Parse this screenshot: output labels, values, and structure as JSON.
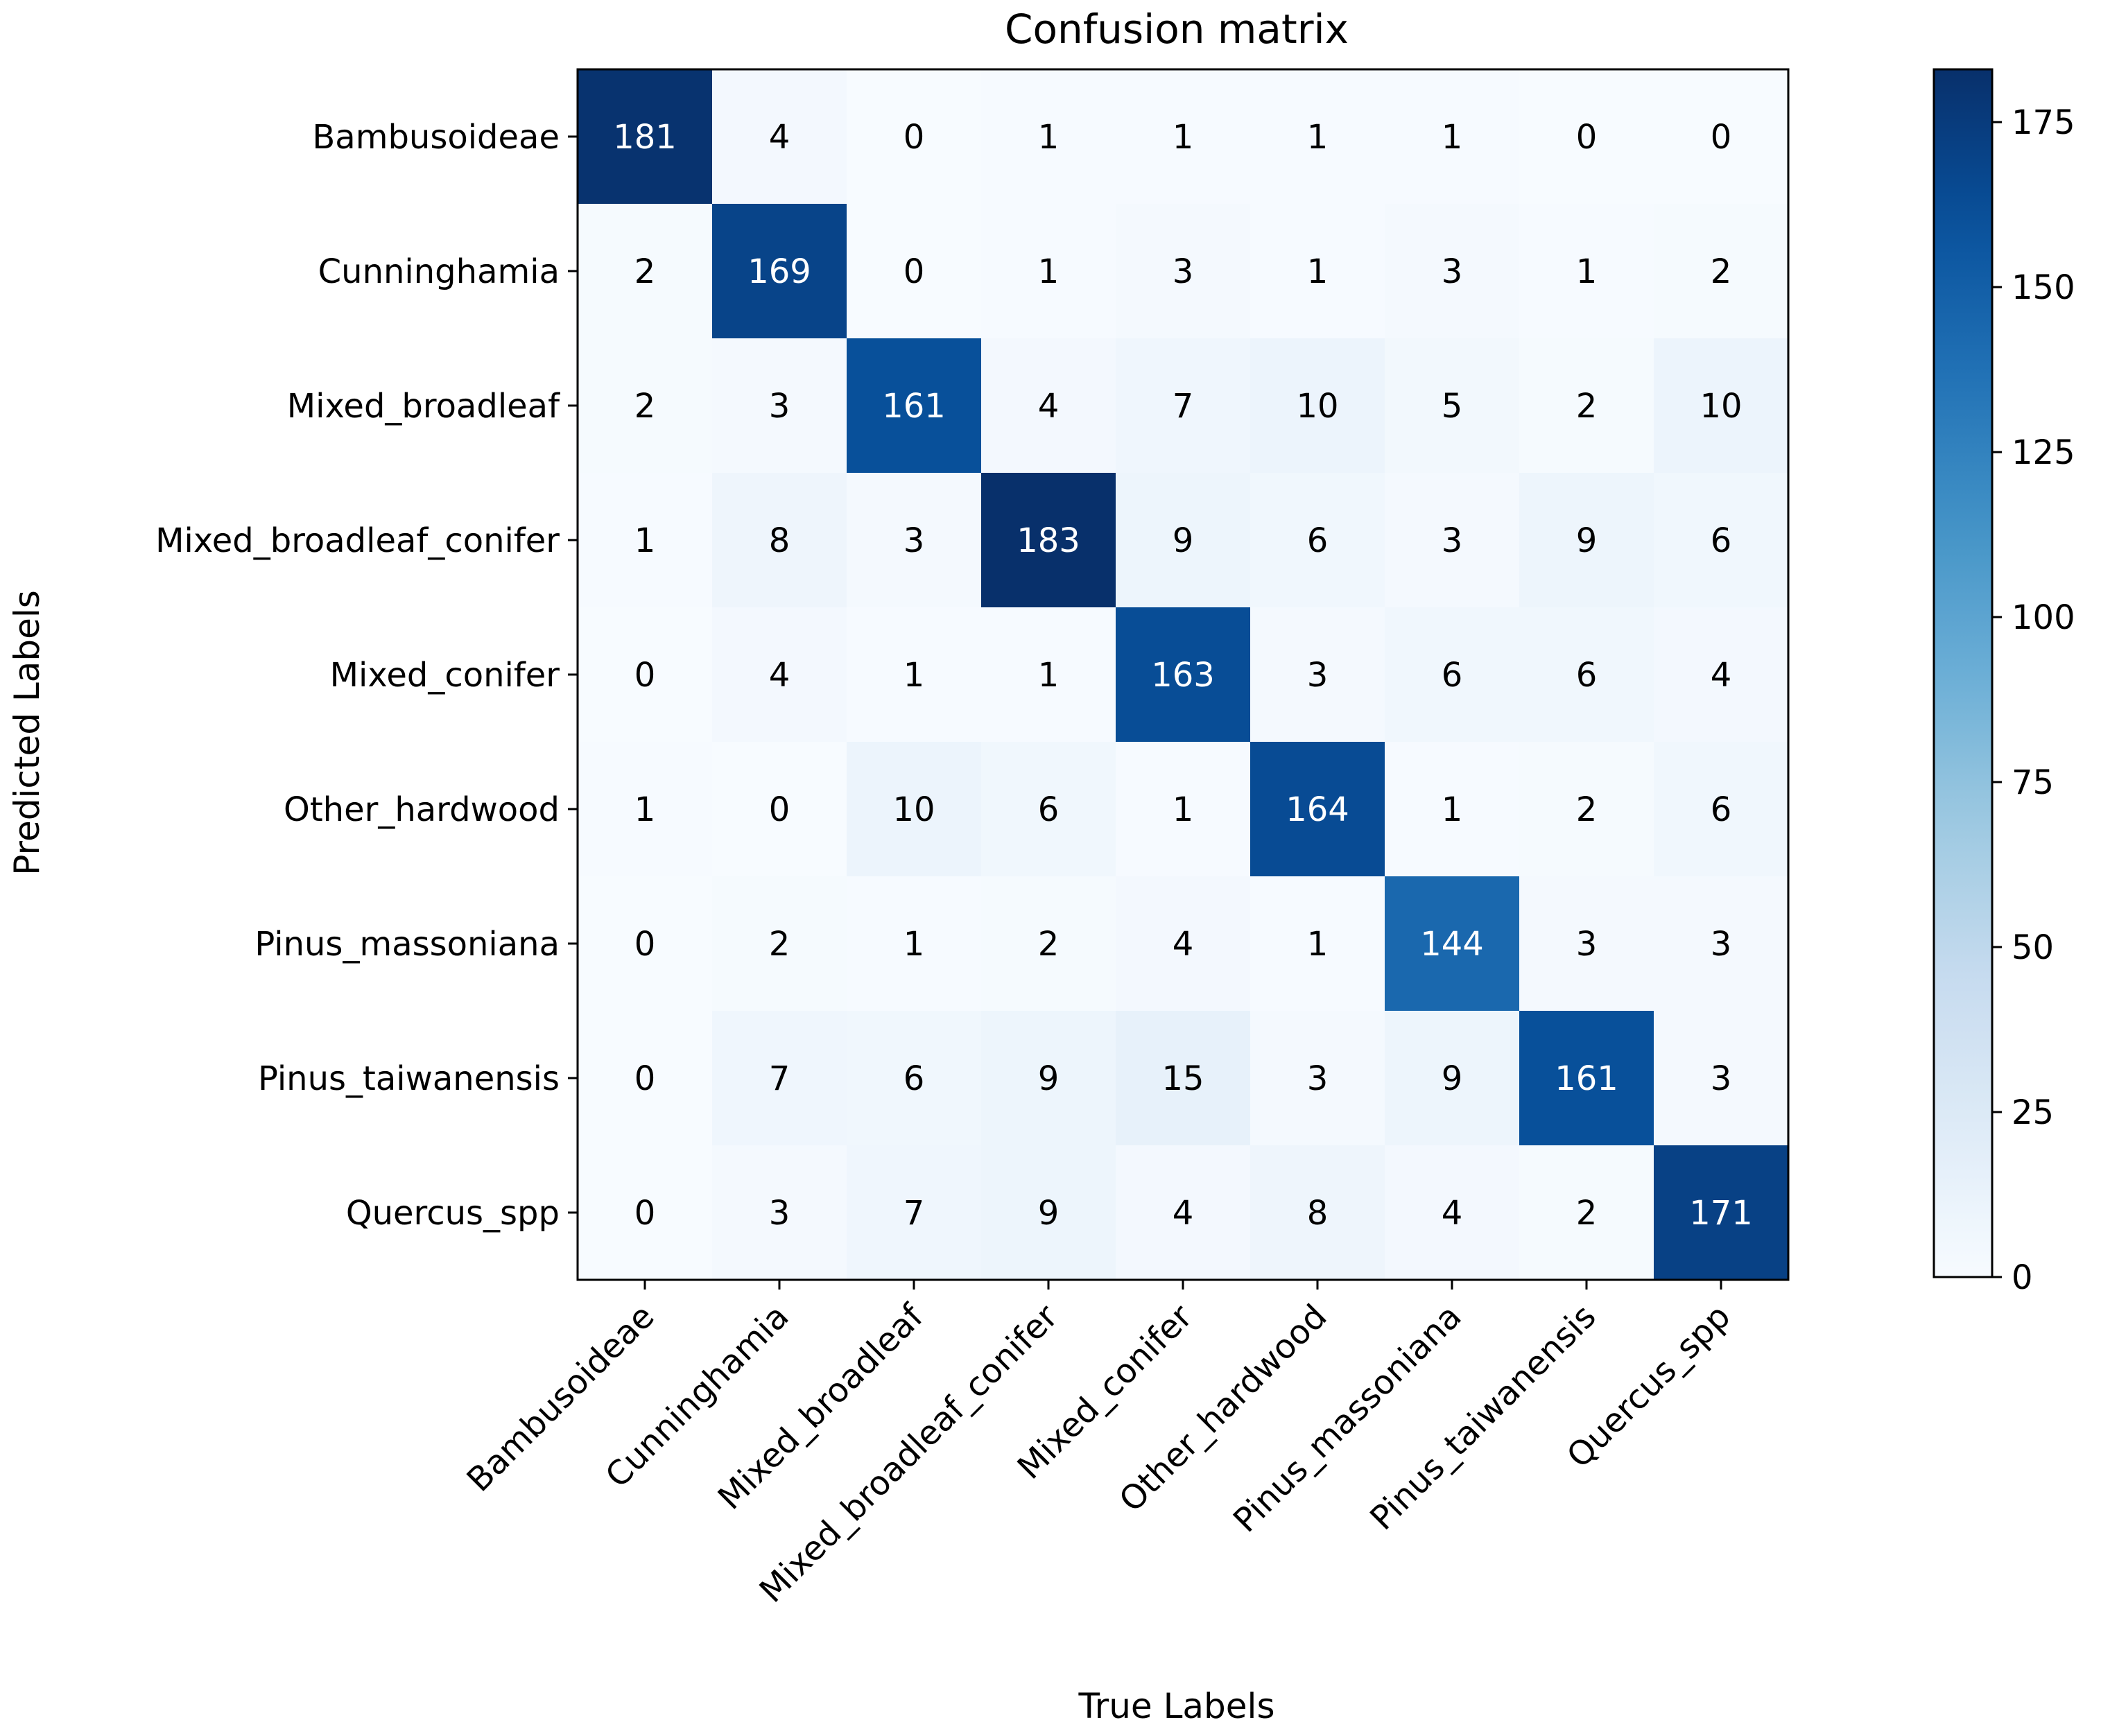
{
  "chart_data": {
    "type": "heatmap",
    "title": "Confusion matrix",
    "xlabel": "True Labels",
    "ylabel": "Predicted Labels",
    "x_categories": [
      "Bambusoideae",
      "Cunninghamia",
      "Mixed_broadleaf",
      "Mixed_broadleaf_conifer",
      "Mixed_conifer",
      "Other_hardwood",
      "Pinus_massoniana",
      "Pinus_taiwanensis",
      "Quercus_spp"
    ],
    "y_categories": [
      "Bambusoideae",
      "Cunninghamia",
      "Mixed_broadleaf",
      "Mixed_broadleaf_conifer",
      "Mixed_conifer",
      "Other_hardwood",
      "Pinus_massoniana",
      "Pinus_taiwanensis",
      "Quercus_spp"
    ],
    "values": [
      [
        181,
        4,
        0,
        1,
        1,
        1,
        1,
        0,
        0
      ],
      [
        2,
        169,
        0,
        1,
        3,
        1,
        3,
        1,
        2
      ],
      [
        2,
        3,
        161,
        4,
        7,
        10,
        5,
        2,
        10
      ],
      [
        1,
        8,
        3,
        183,
        9,
        6,
        3,
        9,
        6
      ],
      [
        0,
        4,
        1,
        1,
        163,
        3,
        6,
        6,
        4
      ],
      [
        1,
        0,
        10,
        6,
        1,
        164,
        1,
        2,
        6
      ],
      [
        0,
        2,
        1,
        2,
        4,
        1,
        144,
        3,
        3
      ],
      [
        0,
        7,
        6,
        9,
        15,
        3,
        9,
        161,
        3
      ],
      [
        0,
        3,
        7,
        9,
        4,
        8,
        4,
        2,
        171
      ]
    ],
    "colorbar": {
      "min": 0,
      "max": 183,
      "ticks": [
        0,
        25,
        50,
        75,
        100,
        125,
        150,
        175
      ],
      "colormap": "Blues"
    },
    "grid": false
  }
}
